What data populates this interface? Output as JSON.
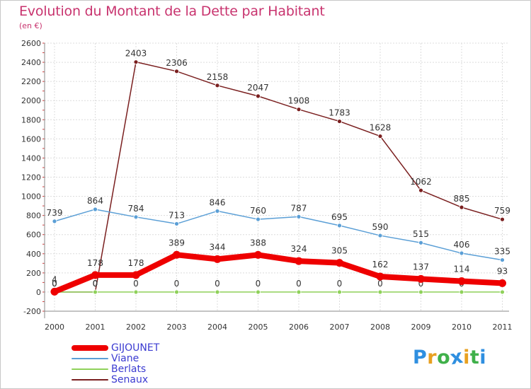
{
  "chart_data": {
    "type": "line",
    "title": "Evolution du Montant de la Dette par Habitant",
    "subtitle": "(en €)",
    "xlabel": "",
    "ylabel": "",
    "categories": [
      "2000",
      "2001",
      "2002",
      "2003",
      "2004",
      "2005",
      "2006",
      "2007",
      "2008",
      "2009",
      "2010",
      "2011"
    ],
    "ylim": [
      -200,
      2600
    ],
    "yticks": [
      -200,
      0,
      200,
      400,
      600,
      800,
      1000,
      1200,
      1400,
      1600,
      1800,
      2000,
      2200,
      2400,
      2600
    ],
    "grid": true,
    "legend_position": "bottom-left",
    "series": [
      {
        "name": "Senaux",
        "color": "#7a1f1f",
        "values": [
          0,
          0,
          2403,
          2306,
          2158,
          2047,
          1908,
          1783,
          1628,
          1062,
          885,
          759
        ],
        "labels": [
          "0",
          "0",
          "2403",
          "2306",
          "2158",
          "2047",
          "1908",
          "1783",
          "1628",
          "1062",
          "885",
          "759"
        ]
      },
      {
        "name": "Viane",
        "color": "#5b9fd6",
        "values": [
          739,
          864,
          784,
          713,
          846,
          760,
          787,
          695,
          590,
          515,
          406,
          335
        ],
        "labels": [
          "739",
          "864",
          "784",
          "713",
          "846",
          "760",
          "787",
          "695",
          "590",
          "515",
          "406",
          "335"
        ]
      },
      {
        "name": "Berlats",
        "color": "#8fd15a",
        "values": [
          0,
          0,
          0,
          0,
          0,
          0,
          0,
          0,
          0,
          0,
          0,
          0
        ],
        "labels": [
          "0",
          "0",
          "0",
          "0",
          "0",
          "0",
          "0",
          "0",
          "0",
          "0",
          "0",
          "0"
        ]
      },
      {
        "name": "GIJOUNET",
        "color": "#ee0000",
        "values": [
          4,
          178,
          178,
          389,
          344,
          388,
          324,
          305,
          162,
          137,
          114,
          93
        ],
        "labels": [
          "4",
          "178",
          "178",
          "389",
          "344",
          "388",
          "324",
          "305",
          "162",
          "137",
          "114",
          "93"
        ]
      }
    ]
  },
  "legend": [
    {
      "name": "GIJOUNET",
      "color": "#ee0000",
      "width": 8
    },
    {
      "name": "Viane",
      "color": "#5b9fd6",
      "width": 2
    },
    {
      "name": "Berlats",
      "color": "#8fd15a",
      "width": 2
    },
    {
      "name": "Senaux",
      "color": "#7a1f1f",
      "width": 2
    }
  ],
  "logo": {
    "letters": [
      "P",
      "r",
      "o",
      "x",
      "i",
      "t",
      "i"
    ],
    "colors": [
      "#2f8fe0",
      "#e8a020",
      "#3fb04a",
      "#2f8fe0",
      "#e8a020",
      "#3fb04a",
      "#2f8fe0"
    ]
  }
}
